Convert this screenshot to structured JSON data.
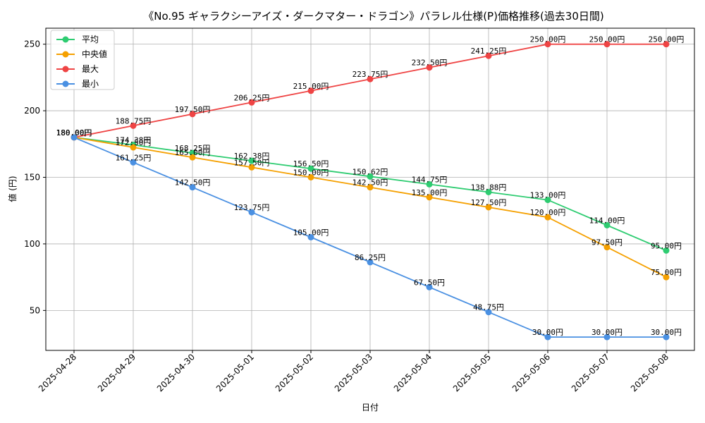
{
  "chart_data": {
    "type": "line",
    "title": "《No.95 ギャラクシーアイズ・ダークマター・ドラゴン》パラレル仕様(P)価格推移(過去30日間)",
    "xlabel": "日付",
    "ylabel": "値 (円)",
    "ylim": [
      20,
      262
    ],
    "yticks": [
      50,
      100,
      150,
      200,
      250
    ],
    "grid": true,
    "legend_position": "top-left",
    "categories": [
      "2025-04-28",
      "2025-04-29",
      "2025-04-30",
      "2025-05-01",
      "2025-05-02",
      "2025-05-03",
      "2025-05-04",
      "2025-05-05",
      "2025-05-06",
      "2025-05-07",
      "2025-05-08"
    ],
    "label_suffix": "円",
    "series": [
      {
        "name": "平均",
        "color": "#2ecc71",
        "values": [
          180.0,
          174.38,
          168.25,
          162.38,
          156.5,
          150.62,
          144.75,
          138.88,
          133.0,
          114.0,
          95.0
        ]
      },
      {
        "name": "中央値",
        "color": "#f5a000",
        "values": [
          180.0,
          172.5,
          165.0,
          157.5,
          150.0,
          142.5,
          135.0,
          127.5,
          120.0,
          97.5,
          75.0
        ]
      },
      {
        "name": "最大",
        "color": "#ef4444",
        "values": [
          180.0,
          188.75,
          197.5,
          206.25,
          215.0,
          223.75,
          232.5,
          241.25,
          250.0,
          250.0,
          250.0
        ]
      },
      {
        "name": "最小",
        "color": "#4a90e2",
        "values": [
          180.0,
          161.25,
          142.5,
          123.75,
          105.0,
          86.25,
          67.5,
          48.75,
          30.0,
          30.0,
          30.0
        ]
      }
    ]
  }
}
